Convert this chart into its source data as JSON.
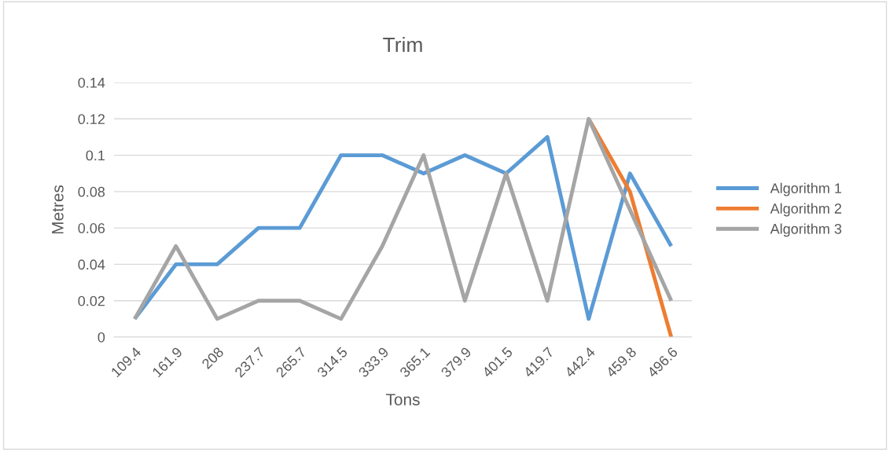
{
  "chart_data": {
    "type": "line",
    "title": "Trim",
    "xlabel": "Tons",
    "ylabel": "Metres",
    "categories": [
      "109.4",
      "161.9",
      "208",
      "237.7",
      "265.7",
      "314.5",
      "333.9",
      "365.1",
      "379.9",
      "401.5",
      "419.7",
      "442.4",
      "459.8",
      "496.6"
    ],
    "series": [
      {
        "name": "Algorithm 1",
        "color": "#5b9bd5",
        "values": [
          0.01,
          0.04,
          0.04,
          0.06,
          0.06,
          0.1,
          0.1,
          0.09,
          0.1,
          0.09,
          0.11,
          0.01,
          0.09,
          0.05
        ]
      },
      {
        "name": "Algorithm 2",
        "color": "#ed7d31",
        "values": [
          null,
          null,
          null,
          null,
          null,
          null,
          null,
          null,
          null,
          null,
          null,
          0.12,
          0.08,
          0
        ]
      },
      {
        "name": "Algorithm 3",
        "color": "#a5a5a5",
        "values": [
          0.01,
          0.05,
          0.01,
          0.02,
          0.02,
          0.01,
          0.05,
          0.1,
          0.02,
          0.09,
          0.02,
          0.12,
          0.07,
          0.02
        ]
      }
    ],
    "ylim": [
      0,
      0.14
    ],
    "yticks": [
      0,
      0.02,
      0.04,
      0.06,
      0.08,
      {
        "value": 0.1,
        "label": "0.1"
      },
      0.12,
      0.14
    ],
    "grid": "y",
    "legend": "right",
    "marker": "none",
    "line_style": "solid"
  }
}
